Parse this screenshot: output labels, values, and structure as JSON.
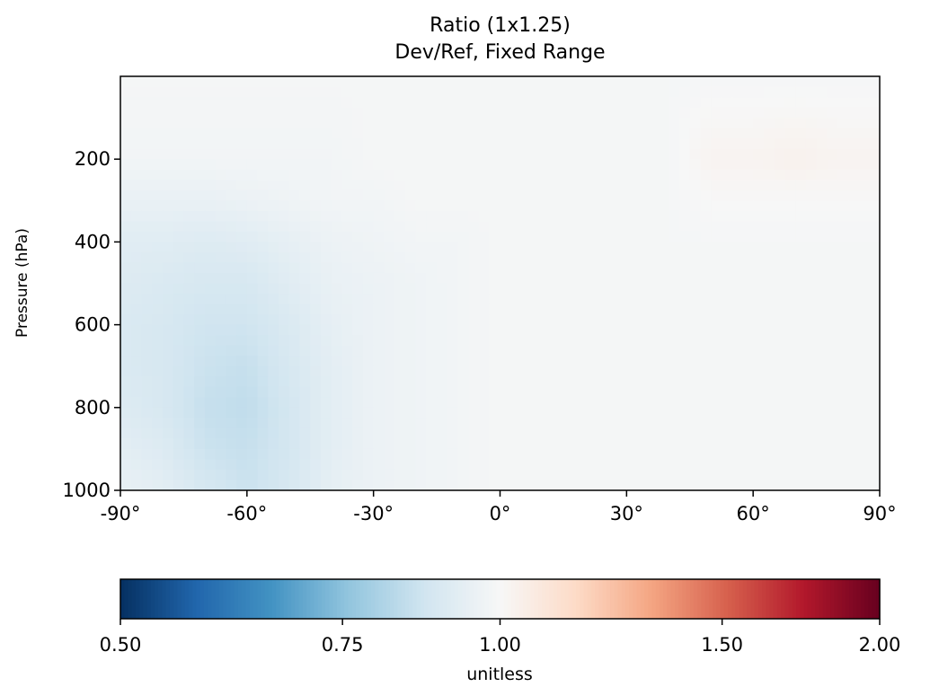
{
  "chart_data": {
    "type": "heatmap",
    "title": "Ratio (1x1.25)",
    "subtitle": "Dev/Ref, Fixed Range",
    "ylabel": "Pressure (hPa)",
    "xlabel": "",
    "x_ticks": [
      "-90°",
      "-60°",
      "-30°",
      "0°",
      "30°",
      "60°",
      "90°"
    ],
    "x_tick_values": [
      -90,
      -60,
      -30,
      0,
      30,
      60,
      90
    ],
    "y_ticks": [
      "200",
      "400",
      "600",
      "800",
      "1000"
    ],
    "y_tick_values": [
      200,
      400,
      600,
      800,
      1000
    ],
    "xlim": [
      -90,
      90
    ],
    "ylim": [
      1000,
      0
    ],
    "colorbar": {
      "label": "unitless",
      "ticks": [
        "0.50",
        "0.75",
        "1.00",
        "1.50",
        "2.00"
      ],
      "tick_values": [
        0.5,
        0.75,
        1.0,
        1.5,
        2.0
      ],
      "scale": "log",
      "colormap": "RdBu_r"
    },
    "field": {
      "latitudes": [
        -90,
        -80,
        -70,
        -60,
        -50,
        -40,
        -30,
        -20,
        -10,
        0,
        10,
        20,
        30,
        40,
        50,
        60,
        70,
        80,
        90
      ],
      "pressures": [
        0,
        200,
        300,
        400,
        500,
        600,
        700,
        800,
        900,
        1000
      ],
      "values": [
        [
          0.99,
          0.99,
          0.99,
          0.99,
          0.99,
          0.99,
          0.99,
          0.99,
          0.99,
          0.99,
          0.99,
          0.99,
          0.99,
          0.99,
          0.99,
          0.99,
          0.99,
          0.99,
          0.99
        ],
        [
          0.98,
          0.98,
          0.98,
          0.98,
          0.98,
          0.98,
          0.99,
          0.99,
          0.99,
          0.99,
          0.99,
          0.99,
          0.99,
          0.99,
          1.02,
          1.02,
          1.03,
          1.02,
          1.02
        ],
        [
          0.95,
          0.95,
          0.95,
          0.96,
          0.97,
          0.98,
          0.98,
          0.99,
          0.99,
          0.99,
          0.99,
          0.99,
          0.99,
          0.99,
          1.0,
          1.0,
          1.0,
          1.0,
          1.0
        ],
        [
          0.92,
          0.92,
          0.91,
          0.92,
          0.94,
          0.96,
          0.97,
          0.98,
          0.98,
          0.99,
          0.99,
          0.99,
          0.99,
          0.99,
          0.99,
          0.99,
          0.99,
          0.99,
          0.99
        ],
        [
          0.91,
          0.9,
          0.89,
          0.89,
          0.92,
          0.95,
          0.96,
          0.97,
          0.98,
          0.99,
          0.99,
          0.99,
          0.99,
          0.99,
          0.99,
          0.99,
          0.99,
          0.99,
          0.99
        ],
        [
          0.9,
          0.89,
          0.87,
          0.87,
          0.9,
          0.94,
          0.96,
          0.97,
          0.98,
          0.99,
          0.99,
          0.99,
          0.99,
          0.99,
          0.99,
          0.99,
          0.99,
          0.99,
          0.99
        ],
        [
          0.9,
          0.89,
          0.86,
          0.85,
          0.89,
          0.93,
          0.96,
          0.97,
          0.98,
          0.99,
          0.99,
          0.99,
          0.99,
          0.99,
          0.99,
          0.99,
          0.99,
          0.99,
          0.99
        ],
        [
          0.91,
          0.89,
          0.85,
          0.84,
          0.88,
          0.93,
          0.96,
          0.97,
          0.98,
          0.99,
          0.99,
          0.99,
          0.99,
          0.99,
          0.99,
          0.99,
          0.99,
          0.99,
          0.99
        ],
        [
          0.93,
          0.91,
          0.86,
          0.85,
          0.88,
          0.93,
          0.96,
          0.97,
          0.98,
          0.99,
          0.99,
          0.99,
          0.99,
          0.99,
          0.99,
          0.99,
          0.99,
          0.99,
          0.99
        ],
        [
          0.95,
          0.93,
          0.89,
          0.86,
          0.89,
          0.94,
          0.96,
          0.97,
          0.98,
          0.99,
          0.99,
          0.99,
          0.99,
          0.99,
          0.99,
          0.99,
          0.99,
          0.99,
          0.99
        ]
      ]
    }
  }
}
